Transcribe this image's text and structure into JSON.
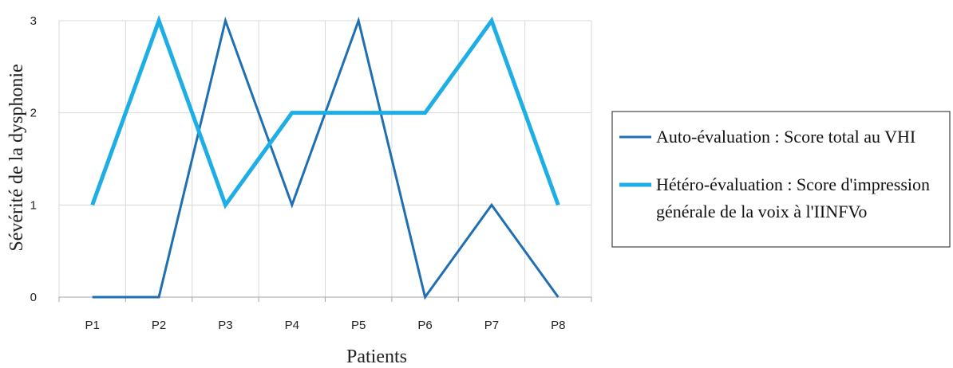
{
  "chart_data": {
    "type": "line",
    "categories": [
      "P1",
      "P2",
      "P3",
      "P4",
      "P5",
      "P6",
      "P7",
      "P8"
    ],
    "series": [
      {
        "name": "Auto-évaluation : Score total au VHI",
        "color": "#1f6fb2",
        "values": [
          0,
          0,
          3,
          1,
          3,
          0,
          1,
          0
        ]
      },
      {
        "name_lines": [
          "Hétéro-évaluation : Score d'impression",
          "générale de la voix à l'IINFVo"
        ],
        "color": "#1eaee6",
        "values": [
          1,
          3,
          1,
          2,
          2,
          2,
          3,
          1
        ]
      }
    ],
    "xlabel": "Patients",
    "ylabel": "Sévérité de la dysphonie",
    "ylim": [
      0,
      3
    ],
    "yticks": [
      0,
      1,
      2,
      3
    ],
    "grid": "vertical and horizontal",
    "legend_position": "right"
  }
}
